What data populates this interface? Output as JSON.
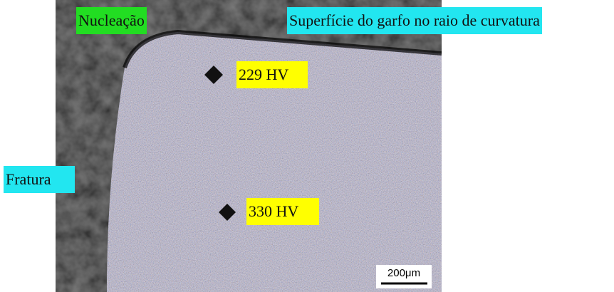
{
  "labels": {
    "nucleation": "Nucleação",
    "surface": "Superfície do garfo no raio de curvatura",
    "fracture": "Fratura"
  },
  "hardness": [
    {
      "label": "229 HV"
    },
    {
      "label": "330 HV"
    }
  ],
  "scale_bar": {
    "label": "200μm"
  }
}
